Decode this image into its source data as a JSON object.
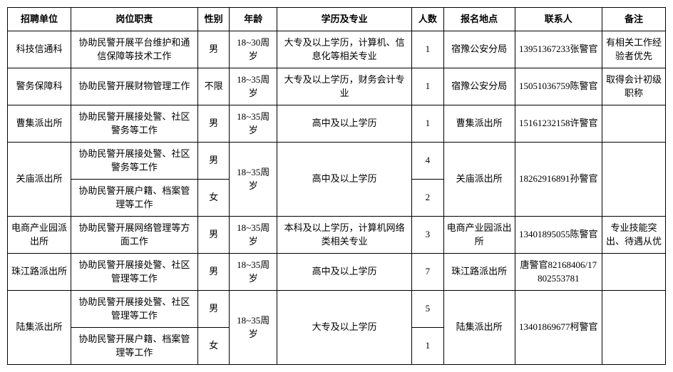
{
  "headers": {
    "unit": "招聘单位",
    "duty": "岗位职责",
    "gender": "性别",
    "age": "年龄",
    "edu": "学历及专业",
    "count": "人数",
    "loc": "报名地点",
    "contact": "联系人",
    "note": "备注"
  },
  "rows": [
    {
      "unit": "科技信通科",
      "duty": "协助民警开展平台维护和通信保障等技术工作",
      "gender": "男",
      "age": "18~30周岁",
      "edu": "大专及以上学历，计算机、信息化等相关专业",
      "count": "1",
      "loc": "宿豫公安分局",
      "contact": "13951367233张警官",
      "note": "有相关工作经验者优先"
    },
    {
      "unit": "警务保障科",
      "duty": "协助民警开展财物管理工作",
      "gender": "不限",
      "age": "18~35周岁",
      "edu": "大专及以上学历，财务会计专业",
      "count": "1",
      "loc": "宿豫公安分局",
      "contact": "15051036759陈警官",
      "note": "取得会计初级职称"
    },
    {
      "unit": "曹集派出所",
      "duty": "协助民警开展接处警、社区警务等工作",
      "gender": "男",
      "age": "18~35周岁",
      "edu": "高中及以上学历",
      "count": "1",
      "loc": "曹集派出所",
      "contact": "15161232158许警官",
      "note": ""
    },
    {
      "unit": "关庙派出所",
      "subA": {
        "duty": "协助民警开展接处警、社区警务等工作",
        "gender": "男",
        "count": "4"
      },
      "subB": {
        "duty": "协助民警开展户籍、档案管理等工作",
        "gender": "女",
        "count": "2"
      },
      "age": "18~35周岁",
      "edu": "高中及以上学历",
      "loc": "关庙派出所",
      "contact": "18262916891孙警官",
      "note": ""
    },
    {
      "unit": "电商产业园派出所",
      "duty": "协助民警开展网络管理等方面工作",
      "gender": "男",
      "age": "18~35周岁",
      "edu": "本科及以上学历，计算机网络类相关专业",
      "count": "3",
      "loc": "电商产业园派出所",
      "contact": "13401895055陈警官",
      "note": "专业技能突出、待遇从优"
    },
    {
      "unit": "珠江路派出所",
      "duty": "协助民警开展接处警、社区管理等工作",
      "gender": "男",
      "age": "18~35周岁",
      "edu": "高中及以上学历",
      "count": "7",
      "loc": "珠江路派出所",
      "contact": "唐警官82168406/17802553781",
      "note": ""
    },
    {
      "unit": "陆集派出所",
      "subA": {
        "duty": "协助民警开展接处警、社区管理等工作",
        "gender": "男",
        "count": "5"
      },
      "subB": {
        "duty": "协助民警开展户籍、档案管理等工作",
        "gender": "女",
        "count": "1"
      },
      "age": "18~35周岁",
      "edu": "大专及以上学历",
      "loc": "陆集派出所",
      "contact": "13401869677柯警官",
      "note": ""
    }
  ]
}
